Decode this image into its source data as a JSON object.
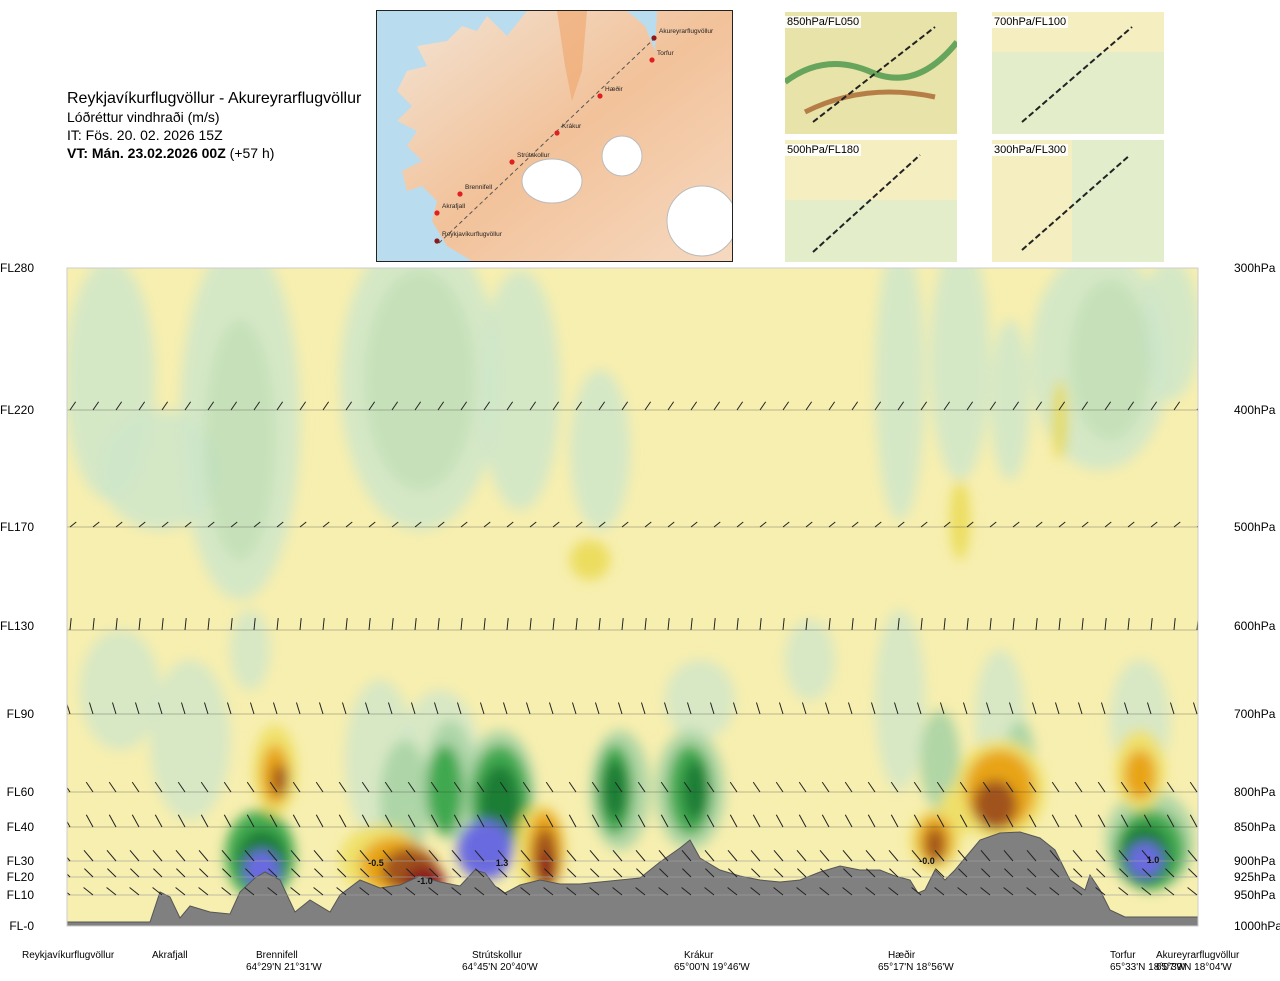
{
  "header": {
    "title": "Reykjavíkurflugvöllur - Akureyrarflugvöllur",
    "subtitle": "Lóðréttur vindhraði (m/s)",
    "it_line": "IT: Fös. 20. 02. 2026 15Z",
    "vt_bold": "VT: Mán. 23.02.2026 00Z",
    "vt_offset": "(+57 h)"
  },
  "route_map": {
    "waypoints": [
      "Akureyrarflugvöllur",
      "Torfur",
      "Hæðir",
      "Krákur",
      "Strútskollur",
      "Brennifell",
      "Akrafjall",
      "Reykjavíkurflugvöllur"
    ]
  },
  "mini_maps": [
    {
      "label": "850hPa/FL050"
    },
    {
      "label": "700hPa/FL100"
    },
    {
      "label": "500hPa/FL180"
    },
    {
      "label": "300hPa/FL300"
    }
  ],
  "chart_data": {
    "type": "heatmap",
    "title": "Lóðréttur vindhraði (m/s)",
    "variable": "vertical velocity (m/s)",
    "y_left_levels": [
      "FL280",
      "FL220",
      "FL170",
      "FL130",
      "FL90",
      "FL60",
      "FL40",
      "FL30",
      "FL20",
      "FL10",
      "FL-0"
    ],
    "y_right_levels": [
      "300hPa",
      "400hPa",
      "500hPa",
      "600hPa",
      "700hPa",
      "800hPa",
      "850hPa",
      "900hPa",
      "925hPa",
      "950hPa",
      "1000hPa"
    ],
    "x_waypoints": [
      {
        "name": "Reykjavíkurflugvöllur",
        "coord": ""
      },
      {
        "name": "Akrafjall",
        "coord": ""
      },
      {
        "name": "Brennifell",
        "coord": "64°29'N 21°31'W"
      },
      {
        "name": "Strútskollur",
        "coord": "64°45'N 20°40'W"
      },
      {
        "name": "Krákur",
        "coord": "65°00'N 19°46'W"
      },
      {
        "name": "Hæðir",
        "coord": "65°17'N 18°56'W"
      },
      {
        "name": "Torfur",
        "coord": "65°33'N 18°07'W"
      },
      {
        "name": "Akureyrarflugvöllur",
        "coord": "65°39'N 18°04'W"
      }
    ],
    "contour_labels": [
      "-0.5",
      "-1.0",
      "1.3",
      "-0.0",
      "1.0"
    ],
    "legend_colors": {
      "strong_down": "#8b1a1a",
      "down2": "#a0521e",
      "down1": "#e8a419",
      "weak_down": "#efe06a",
      "neutral": "#f7efb0",
      "weak_up": "#eef8e8",
      "up1": "#cfe6c9",
      "up2": "#a9d3a4",
      "up3": "#3aa64b",
      "up4": "#1d7d34",
      "strong_up": "#6b6be0",
      "terrain": "#808080"
    }
  }
}
